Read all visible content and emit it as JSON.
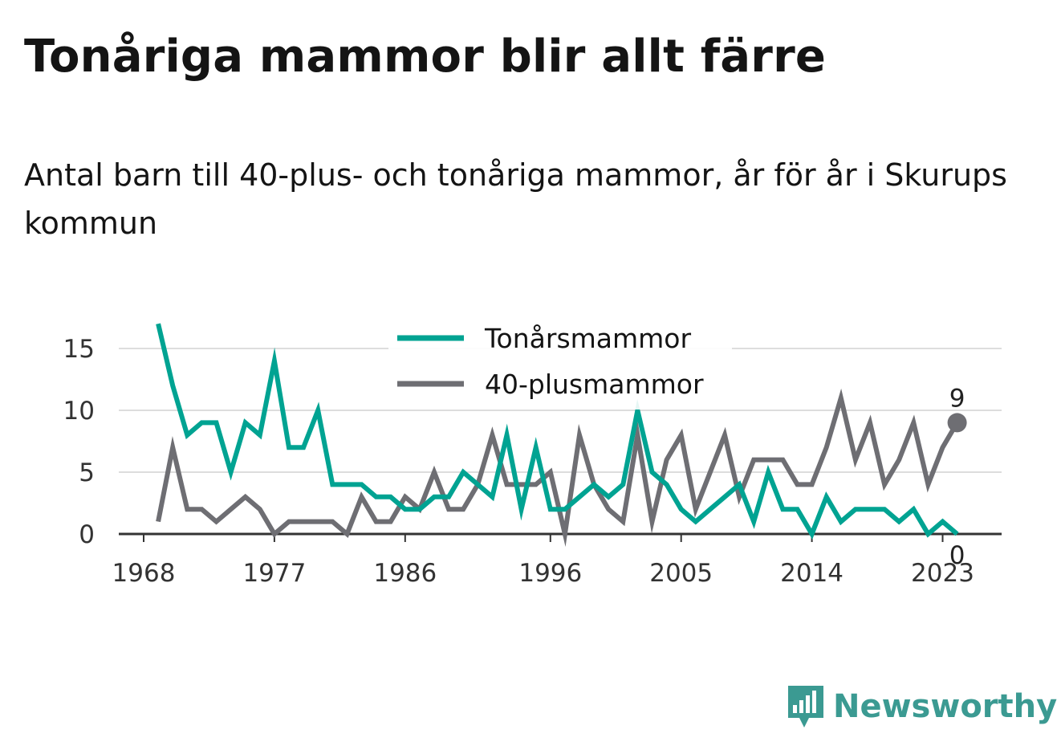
{
  "title": "Tonåriga mammor blir allt färre",
  "subtitle": "Antal barn till 40-plus- och tonåriga mammor, år för år i Skurups kommun",
  "brand": {
    "name": "Newsworthy",
    "color": "#3b9a92",
    "icon": "newsworthy-logo-icon"
  },
  "chart_data": {
    "type": "line",
    "title": "Tonåriga mammor blir allt färre",
    "xlim": [
      1968,
      2026
    ],
    "ylim": [
      0,
      18
    ],
    "x_ticks": [
      "1968",
      "1977",
      "1986",
      "1996",
      "2005",
      "2014",
      "2023"
    ],
    "y_ticks": [
      "0",
      "5",
      "10",
      "15"
    ],
    "grid": true,
    "legend_position": "top-center",
    "x": [
      1969,
      1970,
      1971,
      1972,
      1973,
      1974,
      1975,
      1976,
      1977,
      1978,
      1979,
      1980,
      1981,
      1982,
      1983,
      1984,
      1985,
      1986,
      1987,
      1988,
      1989,
      1990,
      1991,
      1992,
      1993,
      1994,
      1995,
      1996,
      1997,
      1998,
      1999,
      2000,
      2001,
      2002,
      2003,
      2004,
      2005,
      2006,
      2007,
      2008,
      2009,
      2010,
      2011,
      2012,
      2013,
      2014,
      2015,
      2016,
      2017,
      2018,
      2019,
      2020,
      2021,
      2022,
      2023,
      2024
    ],
    "series": [
      {
        "name": "Tonårsmammor",
        "color": "#00a392",
        "values": [
          17,
          12,
          8,
          9,
          9,
          5,
          9,
          8,
          14,
          7,
          7,
          10,
          4,
          4,
          4,
          3,
          3,
          2,
          2,
          3,
          3,
          5,
          4,
          3,
          8,
          2,
          7,
          2,
          2,
          3,
          4,
          3,
          4,
          10,
          5,
          4,
          2,
          1,
          2,
          3,
          4,
          1,
          5,
          2,
          2,
          0,
          3,
          1,
          2,
          2,
          2,
          1,
          2,
          0,
          1,
          0
        ],
        "end_label": "0"
      },
      {
        "name": "40-plusmammor",
        "color": "#6e6e73",
        "values": [
          1,
          7,
          2,
          2,
          1,
          2,
          3,
          2,
          0,
          1,
          1,
          1,
          1,
          0,
          3,
          1,
          1,
          3,
          2,
          5,
          2,
          2,
          4,
          8,
          4,
          4,
          4,
          5,
          0,
          8,
          4,
          2,
          1,
          8,
          1,
          6,
          8,
          2,
          5,
          8,
          3,
          6,
          6,
          6,
          4,
          4,
          7,
          11,
          6,
          9,
          4,
          6,
          9,
          4,
          7,
          9
        ],
        "end_label": "9"
      }
    ]
  }
}
